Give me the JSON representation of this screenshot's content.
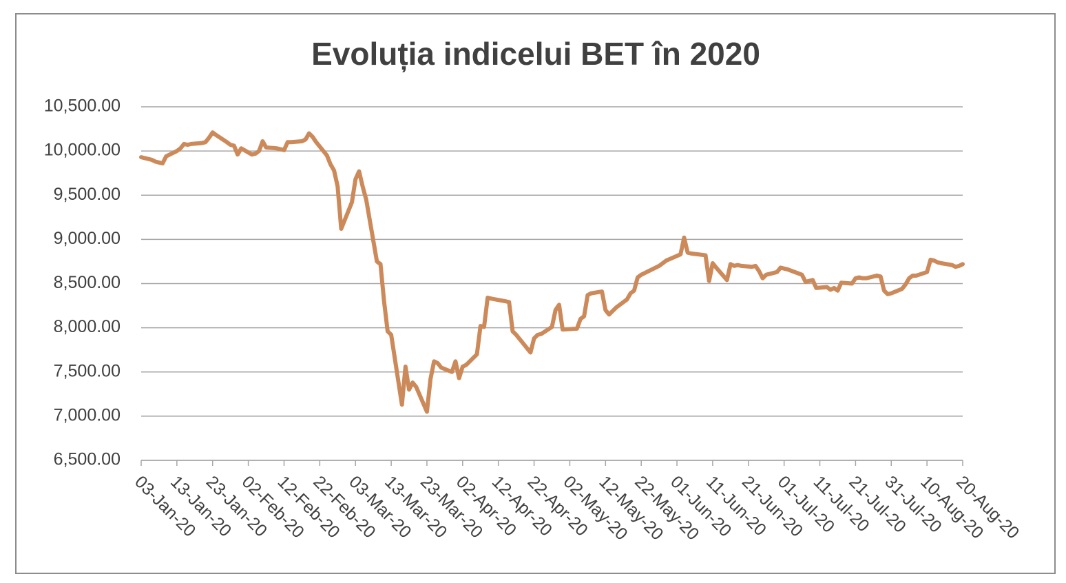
{
  "chart_data": {
    "type": "line",
    "title": "Evoluția indicelui  BET în 2020",
    "x": [
      "2020-01-03",
      "2020-01-06",
      "2020-01-07",
      "2020-01-08",
      "2020-01-09",
      "2020-01-10",
      "2020-01-13",
      "2020-01-14",
      "2020-01-15",
      "2020-01-16",
      "2020-01-17",
      "2020-01-20",
      "2020-01-21",
      "2020-01-22",
      "2020-01-23",
      "2020-01-24",
      "2020-01-27",
      "2020-01-28",
      "2020-01-29",
      "2020-01-30",
      "2020-01-31",
      "2020-02-03",
      "2020-02-04",
      "2020-02-05",
      "2020-02-06",
      "2020-02-07",
      "2020-02-10",
      "2020-02-11",
      "2020-02-12",
      "2020-02-13",
      "2020-02-14",
      "2020-02-17",
      "2020-02-18",
      "2020-02-19",
      "2020-02-20",
      "2020-02-21",
      "2020-02-24",
      "2020-02-25",
      "2020-02-26",
      "2020-02-27",
      "2020-02-28",
      "2020-03-02",
      "2020-03-03",
      "2020-03-04",
      "2020-03-05",
      "2020-03-06",
      "2020-03-09",
      "2020-03-10",
      "2020-03-11",
      "2020-03-12",
      "2020-03-13",
      "2020-03-16",
      "2020-03-17",
      "2020-03-18",
      "2020-03-19",
      "2020-03-20",
      "2020-03-23",
      "2020-03-24",
      "2020-03-25",
      "2020-03-26",
      "2020-03-27",
      "2020-03-30",
      "2020-03-31",
      "2020-04-01",
      "2020-04-02",
      "2020-04-03",
      "2020-04-06",
      "2020-04-07",
      "2020-04-08",
      "2020-04-09",
      "2020-04-10",
      "2020-04-14",
      "2020-04-15",
      "2020-04-16",
      "2020-04-17",
      "2020-04-21",
      "2020-04-22",
      "2020-04-23",
      "2020-04-24",
      "2020-04-27",
      "2020-04-28",
      "2020-04-29",
      "2020-04-30",
      "2020-05-04",
      "2020-05-05",
      "2020-05-06",
      "2020-05-07",
      "2020-05-08",
      "2020-05-11",
      "2020-05-12",
      "2020-05-13",
      "2020-05-15",
      "2020-05-18",
      "2020-05-19",
      "2020-05-20",
      "2020-05-21",
      "2020-05-22",
      "2020-05-26",
      "2020-05-27",
      "2020-05-29",
      "2020-06-02",
      "2020-06-03",
      "2020-06-04",
      "2020-06-05",
      "2020-06-09",
      "2020-06-10",
      "2020-06-11",
      "2020-06-12",
      "2020-06-15",
      "2020-06-16",
      "2020-06-17",
      "2020-06-18",
      "2020-06-19",
      "2020-06-22",
      "2020-06-23",
      "2020-06-24",
      "2020-06-25",
      "2020-06-26",
      "2020-06-29",
      "2020-06-30",
      "2020-07-01",
      "2020-07-02",
      "2020-07-06",
      "2020-07-07",
      "2020-07-08",
      "2020-07-09",
      "2020-07-10",
      "2020-07-13",
      "2020-07-14",
      "2020-07-15",
      "2020-07-16",
      "2020-07-17",
      "2020-07-20",
      "2020-07-21",
      "2020-07-22",
      "2020-07-23",
      "2020-07-24",
      "2020-07-27",
      "2020-07-28",
      "2020-07-29",
      "2020-07-30",
      "2020-07-31",
      "2020-08-03",
      "2020-08-04",
      "2020-08-05",
      "2020-08-06",
      "2020-08-07",
      "2020-08-10",
      "2020-08-11",
      "2020-08-12",
      "2020-08-13",
      "2020-08-14",
      "2020-08-17",
      "2020-08-18",
      "2020-08-19",
      "2020-08-20"
    ],
    "series": [
      {
        "name": "BET",
        "color": "#cc8a5a",
        "values": [
          9930,
          9900,
          9880,
          9870,
          9860,
          9940,
          10000,
          10030,
          10080,
          10070,
          10080,
          10090,
          10100,
          10150,
          10210,
          10180,
          10100,
          10070,
          10060,
          9960,
          10030,
          9960,
          9970,
          10000,
          10110,
          10040,
          10030,
          10020,
          10010,
          10100,
          10100,
          10110,
          10130,
          10200,
          10160,
          10100,
          9950,
          9850,
          9780,
          9600,
          9120,
          9420,
          9680,
          9770,
          9600,
          9450,
          8750,
          8720,
          8300,
          7960,
          7920,
          7130,
          7560,
          7300,
          7380,
          7330,
          7050,
          7420,
          7620,
          7600,
          7550,
          7500,
          7620,
          7430,
          7560,
          7580,
          7700,
          8020,
          8010,
          8340,
          8330,
          8300,
          8290,
          7960,
          7920,
          7720,
          7880,
          7920,
          7930,
          8010,
          8200,
          8260,
          7980,
          7990,
          8100,
          8130,
          8370,
          8390,
          8410,
          8200,
          8150,
          8230,
          8320,
          8390,
          8420,
          8570,
          8600,
          8680,
          8700,
          8760,
          8830,
          9020,
          8850,
          8840,
          8820,
          8530,
          8730,
          8680,
          8540,
          8720,
          8700,
          8710,
          8700,
          8690,
          8700,
          8640,
          8560,
          8600,
          8630,
          8680,
          8670,
          8660,
          8600,
          8520,
          8530,
          8540,
          8450,
          8460,
          8430,
          8450,
          8420,
          8510,
          8500,
          8560,
          8570,
          8560,
          8560,
          8590,
          8580,
          8420,
          8380,
          8390,
          8440,
          8490,
          8560,
          8590,
          8590,
          8630,
          8770,
          8760,
          8740,
          8730,
          8710,
          8690,
          8700,
          8720
        ]
      }
    ],
    "xlim": [
      "2020-01-03",
      "2020-08-20"
    ],
    "xticks": [
      {
        "value": "2020-01-03",
        "label": "03-Jan-20"
      },
      {
        "value": "2020-01-13",
        "label": "13-Jan-20"
      },
      {
        "value": "2020-01-23",
        "label": "23-Jan-20"
      },
      {
        "value": "2020-02-02",
        "label": "02-Feb-20"
      },
      {
        "value": "2020-02-12",
        "label": "12-Feb-20"
      },
      {
        "value": "2020-02-22",
        "label": "22-Feb-20"
      },
      {
        "value": "2020-03-03",
        "label": "03-Mar-20"
      },
      {
        "value": "2020-03-13",
        "label": "13-Mar-20"
      },
      {
        "value": "2020-03-23",
        "label": "23-Mar-20"
      },
      {
        "value": "2020-04-02",
        "label": "02-Apr-20"
      },
      {
        "value": "2020-04-12",
        "label": "12-Apr-20"
      },
      {
        "value": "2020-04-22",
        "label": "22-Apr-20"
      },
      {
        "value": "2020-05-02",
        "label": "02-May-20"
      },
      {
        "value": "2020-05-12",
        "label": "12-May-20"
      },
      {
        "value": "2020-05-22",
        "label": "22-May-20"
      },
      {
        "value": "2020-06-01",
        "label": "01-Jun-20"
      },
      {
        "value": "2020-06-11",
        "label": "11-Jun-20"
      },
      {
        "value": "2020-06-21",
        "label": "21-Jun-20"
      },
      {
        "value": "2020-07-01",
        "label": "01-Jul-20"
      },
      {
        "value": "2020-07-11",
        "label": "11-Jul-20"
      },
      {
        "value": "2020-07-21",
        "label": "21-Jul-20"
      },
      {
        "value": "2020-07-31",
        "label": "31-Jul-20"
      },
      {
        "value": "2020-08-10",
        "label": "10-Aug-20"
      },
      {
        "value": "2020-08-20",
        "label": "20-Aug-20"
      }
    ],
    "ylim": [
      6500,
      10500
    ],
    "yticks": [
      {
        "value": 6500,
        "label": "6,500.00"
      },
      {
        "value": 7000,
        "label": "7,000.00"
      },
      {
        "value": 7500,
        "label": "7,500.00"
      },
      {
        "value": 8000,
        "label": "8,000.00"
      },
      {
        "value": 8500,
        "label": "8,500.00"
      },
      {
        "value": 9000,
        "label": "9,000.00"
      },
      {
        "value": 9500,
        "label": "9,500.00"
      },
      {
        "value": 10000,
        "label": "10,000.00"
      },
      {
        "value": 10500,
        "label": "10,500.00"
      }
    ],
    "grid": true
  }
}
